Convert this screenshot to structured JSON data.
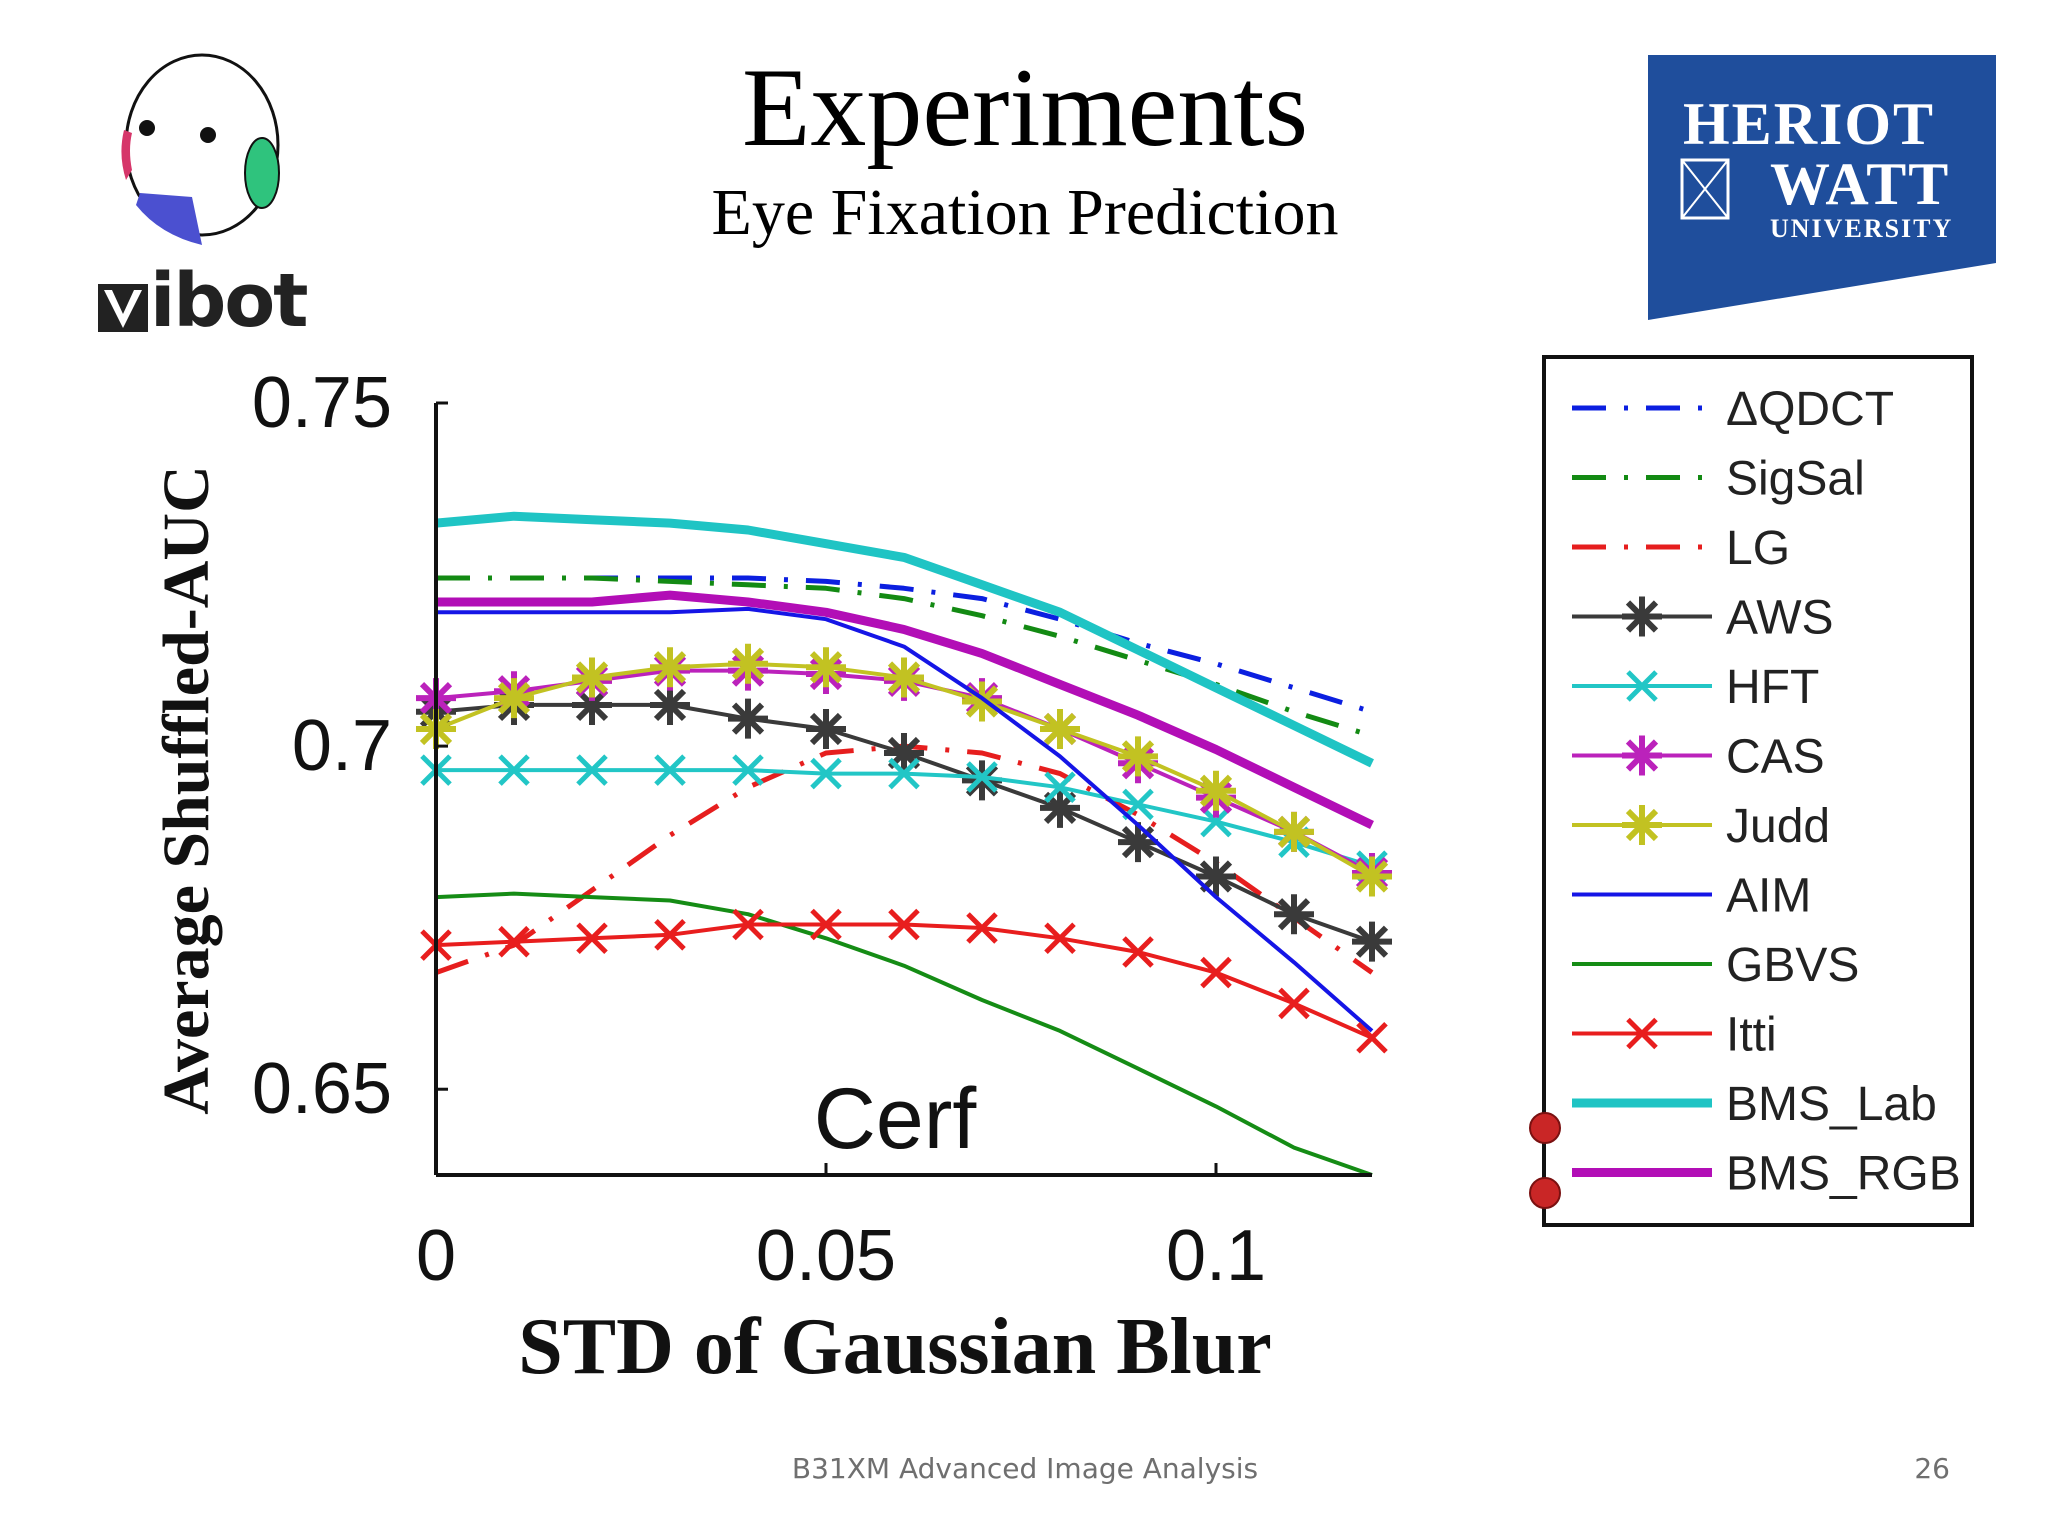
{
  "slide": {
    "title": "Experiments",
    "subtitle": "Eye Fixation Prediction",
    "footer": "B31XM Advanced Image Analysis",
    "page_number": "26",
    "left_logo_text": "ibot",
    "right_logo": {
      "line1": "HERIOT",
      "line2": "WATT",
      "line3": "UNIVERSITY",
      "color": "#1f4e9c"
    }
  },
  "chart_data": {
    "type": "line",
    "title": "",
    "annotation": "Cerf",
    "xlabel": "STD of Gaussian Blur",
    "ylabel": "Average Shuffled-AUC",
    "xlim": [
      0,
      0.12
    ],
    "ylim": [
      0.6375,
      0.75
    ],
    "xticks": [
      0,
      0.05,
      0.1
    ],
    "xtick_labels": [
      "0",
      "0.05",
      "0.1"
    ],
    "yticks": [
      0.65,
      0.7,
      0.75
    ],
    "ytick_labels": [
      "0.65",
      "0.7",
      "0.75"
    ],
    "grid": false,
    "legend_position": "right",
    "x": [
      0,
      0.01,
      0.02,
      0.03,
      0.04,
      0.05,
      0.06,
      0.07,
      0.08,
      0.09,
      0.1,
      0.11,
      0.12
    ],
    "series": [
      {
        "name": "ΔQDCT",
        "color": "#0b1fe0",
        "dash": "dashdot",
        "width": 5,
        "marker": "none",
        "values": [
          0.7245,
          0.7245,
          0.7245,
          0.7245,
          0.7245,
          0.724,
          0.723,
          0.7215,
          0.7185,
          0.715,
          0.712,
          0.7085,
          0.705
        ]
      },
      {
        "name": "SigSal",
        "color": "#138a13",
        "dash": "dashdot",
        "width": 5,
        "marker": "none",
        "values": [
          0.7245,
          0.7245,
          0.7245,
          0.724,
          0.7235,
          0.723,
          0.7215,
          0.719,
          0.716,
          0.7125,
          0.709,
          0.705,
          0.7015
        ]
      },
      {
        "name": "LG",
        "color": "#e61e1e",
        "dash": "dashdot",
        "width": 5,
        "marker": "none",
        "values": [
          0.667,
          0.671,
          0.679,
          0.687,
          0.694,
          0.699,
          0.7,
          0.699,
          0.696,
          0.69,
          0.683,
          0.675,
          0.667
        ]
      },
      {
        "name": "AWS",
        "color": "#3a3a3a",
        "dash": "solid",
        "width": 4,
        "marker": "asterisk",
        "values": [
          0.705,
          0.706,
          0.706,
          0.706,
          0.704,
          0.7025,
          0.699,
          0.695,
          0.691,
          0.686,
          0.681,
          0.6755,
          0.6715
        ]
      },
      {
        "name": "HFT",
        "color": "#22c6c6",
        "dash": "solid",
        "width": 4,
        "marker": "x",
        "values": [
          0.6965,
          0.6965,
          0.6965,
          0.6965,
          0.6965,
          0.696,
          0.696,
          0.6955,
          0.694,
          0.6915,
          0.689,
          0.686,
          0.6825
        ]
      },
      {
        "name": "CAS",
        "color": "#bb22bb",
        "dash": "solid",
        "width": 4,
        "marker": "asterisk",
        "values": [
          0.707,
          0.708,
          0.7095,
          0.711,
          0.711,
          0.7105,
          0.7095,
          0.707,
          0.7025,
          0.6975,
          0.6925,
          0.6875,
          0.6815
        ]
      },
      {
        "name": "Judd",
        "color": "#c2c222",
        "dash": "solid",
        "width": 4,
        "marker": "asterisk",
        "values": [
          0.7025,
          0.707,
          0.71,
          0.7115,
          0.712,
          0.7115,
          0.71,
          0.7065,
          0.7025,
          0.6985,
          0.6935,
          0.6875,
          0.681
        ]
      },
      {
        "name": "AIM",
        "color": "#1515e6",
        "dash": "solid",
        "width": 4,
        "marker": "none",
        "values": [
          0.7195,
          0.7195,
          0.7195,
          0.7195,
          0.72,
          0.7185,
          0.7145,
          0.707,
          0.6985,
          0.6885,
          0.678,
          0.6685,
          0.6585
        ]
      },
      {
        "name": "GBVS",
        "color": "#158c15",
        "dash": "solid",
        "width": 4,
        "marker": "none",
        "values": [
          0.678,
          0.6785,
          0.678,
          0.6775,
          0.6755,
          0.672,
          0.668,
          0.663,
          0.6585,
          0.653,
          0.6475,
          0.6415,
          0.6375
        ]
      },
      {
        "name": "Itti",
        "color": "#e81e1e",
        "dash": "solid",
        "width": 4,
        "marker": "x",
        "values": [
          0.671,
          0.6715,
          0.672,
          0.6725,
          0.674,
          0.674,
          0.674,
          0.6735,
          0.672,
          0.67,
          0.667,
          0.6625,
          0.6575
        ]
      },
      {
        "name": "BMS_Lab",
        "color": "#1fc4c4",
        "dash": "solid",
        "width": 9,
        "marker": "none",
        "values": [
          0.7325,
          0.7335,
          0.733,
          0.7325,
          0.7315,
          0.7295,
          0.7275,
          0.7235,
          0.7195,
          0.714,
          0.7085,
          0.703,
          0.6975
        ]
      },
      {
        "name": "BMS_RGB",
        "color": "#b20eb6",
        "dash": "solid",
        "width": 9,
        "marker": "none",
        "values": [
          0.721,
          0.721,
          0.721,
          0.722,
          0.721,
          0.7195,
          0.717,
          0.7135,
          0.709,
          0.7045,
          0.6995,
          0.694,
          0.6885
        ]
      }
    ]
  }
}
